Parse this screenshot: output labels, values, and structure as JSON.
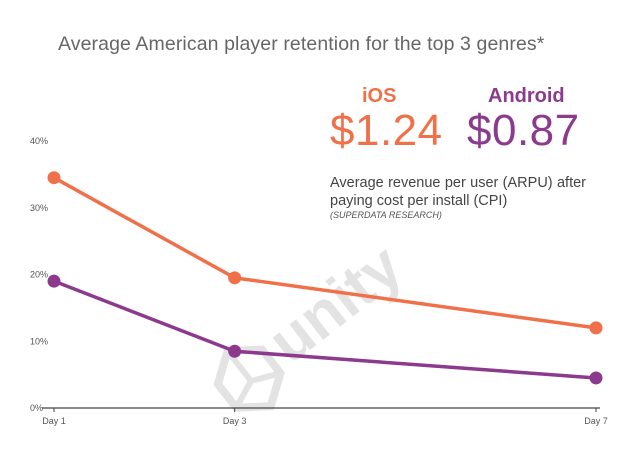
{
  "title": "Average American player retention for the top 3 genres*",
  "ios": {
    "label": "iOS",
    "arpu": "$1.24",
    "color": "#f0704a"
  },
  "android": {
    "label": "Android",
    "arpu": "$0.87",
    "color": "#8b3a8e"
  },
  "description": "Average revenue per user (ARPU) after paying cost per install (CPI)",
  "source": "(SUPERDATA RESEARCH)",
  "watermark": "unity",
  "chart_data": {
    "type": "line",
    "title": "Average American player retention for the top 3 genres*",
    "categories": [
      "Day 1",
      "Day 3",
      "Day 7"
    ],
    "x_positions": [
      1,
      3,
      7
    ],
    "series": [
      {
        "name": "iOS",
        "color": "#f0704a",
        "values": [
          34.5,
          19.5,
          12
        ]
      },
      {
        "name": "Android",
        "color": "#8b3a8e",
        "values": [
          19,
          8.5,
          4.5
        ]
      }
    ],
    "y_ticks": [
      "0%",
      "10%",
      "20%",
      "30%",
      "40%"
    ],
    "ylim": [
      0,
      40
    ],
    "xlabel": "",
    "ylabel": "",
    "grid": false
  }
}
